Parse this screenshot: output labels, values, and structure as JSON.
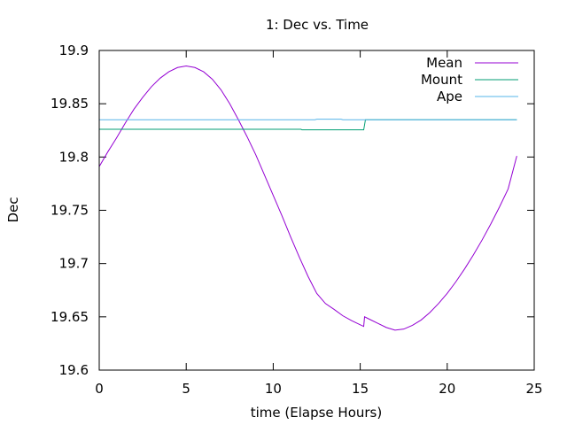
{
  "chart_data": {
    "type": "line",
    "title": "1: Dec vs. Time",
    "xlabel": "time (Elapse Hours)",
    "ylabel": "Dec",
    "xlim": [
      0,
      25
    ],
    "ylim": [
      19.6,
      19.9
    ],
    "xticks": [
      0,
      5,
      10,
      15,
      20,
      25
    ],
    "xtick_labels": [
      "0",
      "5",
      "10",
      "15",
      "20",
      "25"
    ],
    "yticks": [
      19.6,
      19.65,
      19.7,
      19.75,
      19.8,
      19.85,
      19.9
    ],
    "ytick_labels": [
      "19.6",
      "19.65",
      "19.7",
      "19.75",
      "19.8",
      "19.85",
      "19.9"
    ],
    "grid": false,
    "legend_position": "top-right",
    "series": [
      {
        "name": "Mean",
        "color": "#9400d3",
        "x": [
          0,
          0.5,
          1,
          1.5,
          2,
          2.5,
          3,
          3.5,
          4,
          4.5,
          5,
          5.5,
          6,
          6.5,
          7,
          7.5,
          8,
          8.5,
          9,
          9.5,
          10,
          10.5,
          11,
          11.5,
          12,
          12.5,
          13,
          13.5,
          14,
          14.5,
          15,
          15.2,
          15.25,
          15.5,
          16,
          16.5,
          17,
          17.5,
          18,
          18.5,
          19,
          19.5,
          20,
          20.5,
          21,
          21.5,
          22,
          22.5,
          23,
          23.5,
          24
        ],
        "y": [
          19.791,
          19.805,
          19.818,
          19.832,
          19.845,
          19.856,
          19.866,
          19.874,
          19.88,
          19.884,
          19.8855,
          19.884,
          19.88,
          19.873,
          19.863,
          19.85,
          19.835,
          19.819,
          19.802,
          19.783,
          19.764,
          19.745,
          19.725,
          19.706,
          19.688,
          19.672,
          19.6625,
          19.657,
          19.651,
          19.6465,
          19.6425,
          19.641,
          19.65,
          19.648,
          19.644,
          19.64,
          19.6375,
          19.6385,
          19.642,
          19.647,
          19.654,
          19.6625,
          19.672,
          19.683,
          19.695,
          19.708,
          19.722,
          19.737,
          19.753,
          19.77,
          19.801
        ]
      },
      {
        "name": "Mount",
        "color": "#009e73",
        "x": [
          0,
          11.6,
          11.65,
          15.2,
          15.3,
          24
        ],
        "y": [
          19.826,
          19.826,
          19.8255,
          19.8255,
          19.835,
          19.835
        ]
      },
      {
        "name": "Ape",
        "color": "#56b4e9",
        "x": [
          0,
          12.4,
          12.5,
          13.9,
          14.0,
          24
        ],
        "y": [
          19.835,
          19.835,
          19.8355,
          19.8355,
          19.835,
          19.835
        ]
      }
    ]
  }
}
